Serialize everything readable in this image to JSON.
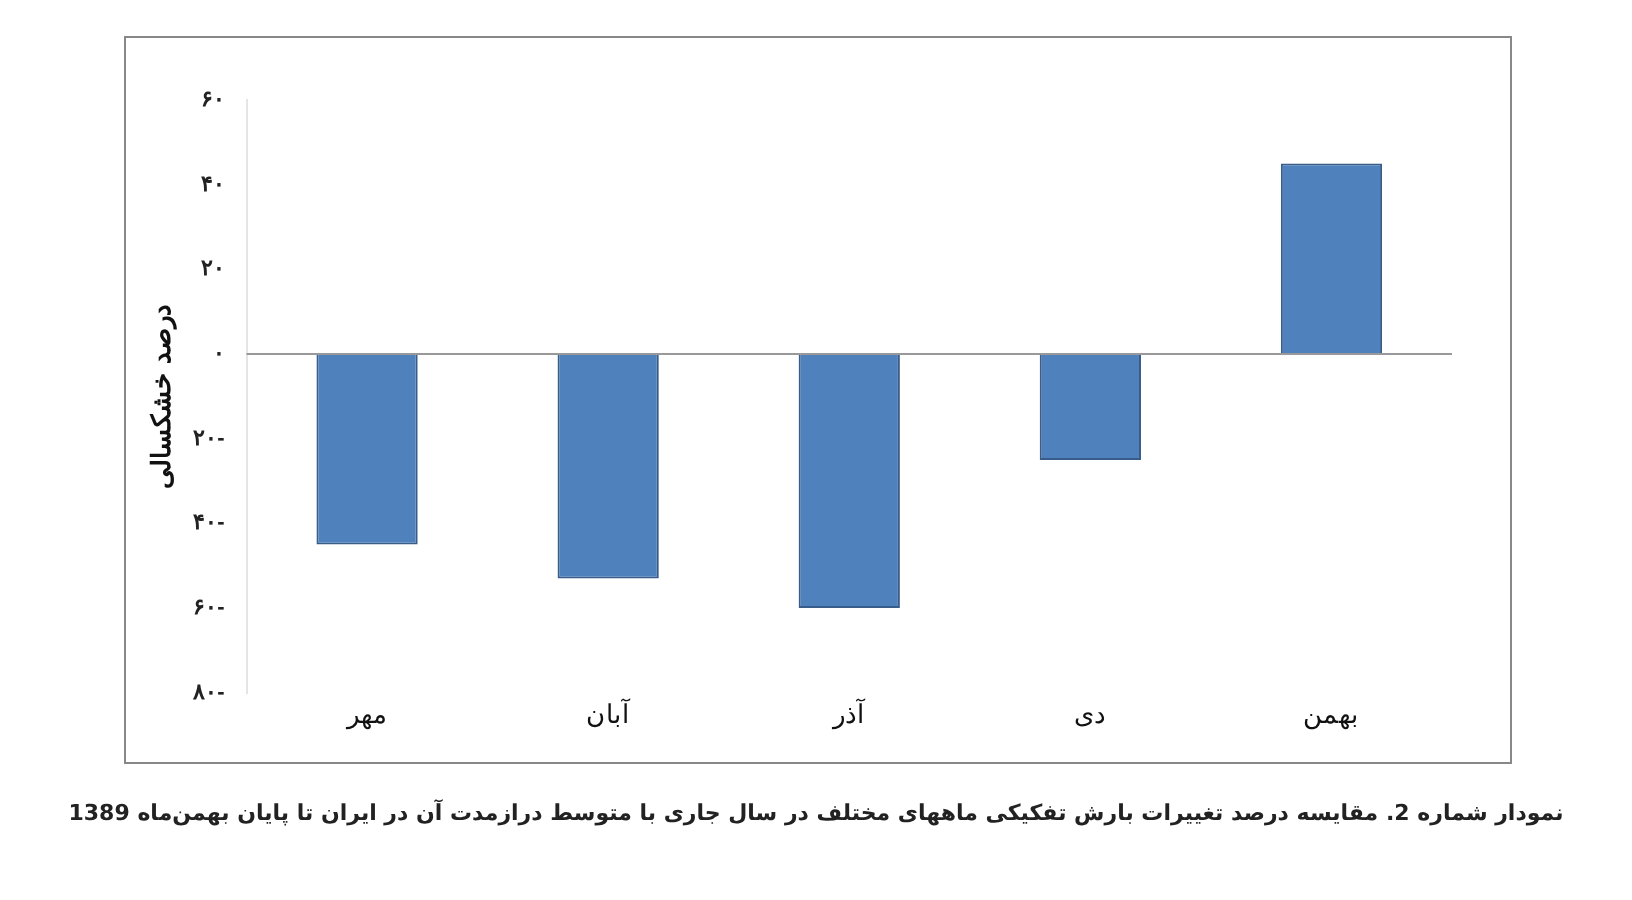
{
  "chart_data": {
    "type": "bar",
    "ylabel": "درصد خشکسالی",
    "categories": [
      "مهر",
      "آبان",
      "آذر",
      "دی",
      "بهمن"
    ],
    "values": [
      -45,
      -53,
      -60,
      -25,
      45
    ],
    "color": "#4f81bd",
    "ylim": [
      -80,
      60
    ],
    "yticks": [
      {
        "value": 60,
        "label": "۶۰"
      },
      {
        "value": 40,
        "label": "۴۰"
      },
      {
        "value": 20,
        "label": "۲۰"
      },
      {
        "value": 0,
        "label": "۰"
      },
      {
        "value": -20,
        "label": "۲۰-"
      },
      {
        "value": -40,
        "label": "۴۰-"
      },
      {
        "value": -60,
        "label": "۶۰-"
      },
      {
        "value": -80,
        "label": "۸۰-"
      }
    ],
    "grid": false,
    "ref_lines": [
      {
        "axis": "y",
        "value": 0,
        "color": "#999999"
      }
    ],
    "annotations": [
      "نمودار شماره 2. مقایسه درصد تغییرات بارش تفکیکی ماههای مختلف در سال جاری با متوسط درازمدت آن در ایران تا پایان بهمن‌ماه 1389"
    ]
  }
}
